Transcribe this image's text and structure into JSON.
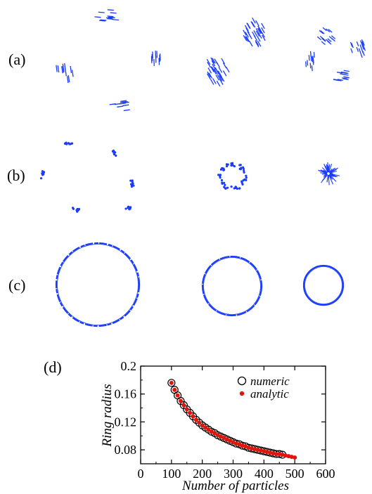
{
  "panel_labels": [
    "(a)",
    "(b)",
    "(c)",
    "(d)"
  ],
  "particle_color": "#1a3cff",
  "chart_data": {
    "type": "scatter",
    "title": "",
    "xlabel": "Number of particles",
    "ylabel": "Ring radius",
    "xlim": [
      0,
      600
    ],
    "ylim": [
      0.06,
      0.2
    ],
    "xticks": [
      "0",
      "100",
      "200",
      "300",
      "400",
      "500",
      "600"
    ],
    "yticks": [
      "0.08",
      "0.12",
      "0.16",
      "0.2"
    ],
    "legend_position": "top-right",
    "grid": false,
    "series": [
      {
        "name": "numeric",
        "marker": "open-circle",
        "color": "#000000",
        "x": [
          100,
          110,
          120,
          130,
          140,
          150,
          160,
          170,
          180,
          190,
          200,
          210,
          220,
          230,
          240,
          250,
          260,
          270,
          280,
          290,
          300,
          310,
          320,
          330,
          340,
          350,
          360,
          370,
          380,
          390,
          400,
          410,
          420,
          430,
          440,
          450,
          460
        ],
        "y": [
          0.176,
          0.166,
          0.158,
          0.15,
          0.144,
          0.138,
          0.133,
          0.128,
          0.123,
          0.119,
          0.115,
          0.112,
          0.109,
          0.106,
          0.104,
          0.101,
          0.099,
          0.097,
          0.095,
          0.093,
          0.091,
          0.089,
          0.088,
          0.086,
          0.085,
          0.083,
          0.082,
          0.081,
          0.08,
          0.079,
          0.078,
          0.077,
          0.076,
          0.075,
          0.074,
          0.074,
          0.073
        ]
      },
      {
        "name": "analytic",
        "marker": "filled-dot",
        "color": "#e0150c",
        "x": [
          100,
          110,
          120,
          130,
          140,
          150,
          160,
          170,
          180,
          190,
          200,
          210,
          220,
          230,
          240,
          250,
          260,
          270,
          280,
          290,
          300,
          310,
          320,
          330,
          340,
          350,
          360,
          370,
          380,
          390,
          400,
          410,
          420,
          430,
          440,
          450,
          460,
          470,
          480,
          490,
          500
        ],
        "y": [
          0.176,
          0.166,
          0.158,
          0.15,
          0.144,
          0.138,
          0.133,
          0.128,
          0.123,
          0.119,
          0.115,
          0.112,
          0.109,
          0.106,
          0.104,
          0.101,
          0.099,
          0.097,
          0.095,
          0.093,
          0.091,
          0.089,
          0.088,
          0.086,
          0.085,
          0.083,
          0.082,
          0.081,
          0.08,
          0.079,
          0.078,
          0.077,
          0.076,
          0.075,
          0.074,
          0.074,
          0.073,
          0.072,
          0.071,
          0.07,
          0.069
        ]
      }
    ]
  }
}
